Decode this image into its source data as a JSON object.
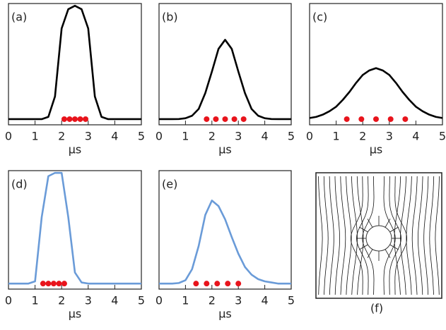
{
  "chart_data": [
    {
      "type": "line",
      "label": "(a)",
      "x_label": "μs",
      "xlim": [
        0,
        5
      ],
      "ylim": [
        -0.05,
        1.02
      ],
      "xticks": [
        0,
        1,
        2,
        3,
        4,
        5
      ],
      "x": [
        0,
        0.25,
        0.5,
        0.75,
        1,
        1.25,
        1.5,
        1.75,
        2,
        2.25,
        2.5,
        2.75,
        3,
        3.25,
        3.5,
        3.75,
        4,
        4.25,
        4.5,
        4.75,
        5
      ],
      "series": [
        {
          "color": "#000000",
          "values": [
            0,
            0,
            0,
            0,
            0,
            0,
            0.02,
            0.2,
            0.8,
            0.97,
            1.0,
            0.97,
            0.8,
            0.2,
            0.02,
            0,
            0,
            0,
            0,
            0,
            0
          ]
        }
      ],
      "markers": {
        "color": "#e8141c",
        "x": [
          2.1,
          2.3,
          2.5,
          2.7,
          2.9
        ],
        "y": [
          0,
          0,
          0,
          0,
          0
        ]
      }
    },
    {
      "type": "line",
      "label": "(b)",
      "x_label": "μs",
      "xlim": [
        0,
        5
      ],
      "ylim": [
        -0.05,
        1.02
      ],
      "xticks": [
        0,
        1,
        2,
        3,
        4,
        5
      ],
      "x": [
        0,
        0.25,
        0.5,
        0.75,
        1,
        1.25,
        1.5,
        1.75,
        2,
        2.25,
        2.5,
        2.75,
        3,
        3.25,
        3.5,
        3.75,
        4,
        4.25,
        4.5,
        4.75,
        5
      ],
      "series": [
        {
          "color": "#000000",
          "values": [
            0,
            0,
            0,
            0.001,
            0.008,
            0.03,
            0.09,
            0.23,
            0.42,
            0.62,
            0.7,
            0.62,
            0.42,
            0.23,
            0.09,
            0.03,
            0.008,
            0.001,
            0,
            0,
            0
          ]
        }
      ],
      "markers": {
        "color": "#e8141c",
        "x": [
          1.8,
          2.15,
          2.5,
          2.85,
          3.2
        ],
        "y": [
          0,
          0,
          0,
          0,
          0
        ]
      }
    },
    {
      "type": "line",
      "label": "(c)",
      "x_label": "μs",
      "xlim": [
        0,
        5
      ],
      "ylim": [
        -0.05,
        1.02
      ],
      "xticks": [
        0,
        1,
        2,
        3,
        4,
        5
      ],
      "x": [
        0,
        0.25,
        0.5,
        0.75,
        1,
        1.25,
        1.5,
        1.75,
        2,
        2.25,
        2.5,
        2.75,
        3,
        3.25,
        3.5,
        3.75,
        4,
        4.25,
        4.5,
        4.75,
        5
      ],
      "series": [
        {
          "color": "#000000",
          "values": [
            0.01,
            0.02,
            0.04,
            0.07,
            0.11,
            0.17,
            0.24,
            0.32,
            0.39,
            0.43,
            0.45,
            0.43,
            0.39,
            0.32,
            0.24,
            0.17,
            0.11,
            0.07,
            0.04,
            0.02,
            0.01
          ]
        }
      ],
      "markers": {
        "color": "#e8141c",
        "x": [
          1.4,
          1.95,
          2.5,
          3.05,
          3.6
        ],
        "y": [
          0,
          0,
          0,
          0,
          0
        ]
      }
    },
    {
      "type": "line",
      "label": "(d)",
      "x_label": "μs",
      "xlim": [
        0,
        5
      ],
      "ylim": [
        -0.05,
        1.02
      ],
      "xticks": [
        0,
        1,
        2,
        3,
        4,
        5
      ],
      "x": [
        0,
        0.25,
        0.5,
        0.75,
        1,
        1.25,
        1.5,
        1.75,
        2,
        2.25,
        2.5,
        2.75,
        3,
        3.25,
        3.5,
        3.75,
        4,
        4.25,
        4.5,
        4.75,
        5
      ],
      "series": [
        {
          "color": "#6a9bd8",
          "values": [
            0,
            0,
            0,
            0,
            0.02,
            0.6,
            0.97,
            1.0,
            1.0,
            0.6,
            0.1,
            0.01,
            0,
            0,
            0,
            0,
            0,
            0,
            0,
            0,
            0
          ]
        }
      ],
      "markers": {
        "color": "#e8141c",
        "x": [
          1.3,
          1.5,
          1.7,
          1.9,
          2.1
        ],
        "y": [
          0,
          0,
          0,
          0,
          0
        ]
      }
    },
    {
      "type": "line",
      "label": "(e)",
      "x_label": "μs",
      "xlim": [
        0,
        5
      ],
      "ylim": [
        -0.05,
        1.02
      ],
      "xticks": [
        0,
        1,
        2,
        3,
        4,
        5
      ],
      "x": [
        0,
        0.25,
        0.5,
        0.75,
        1,
        1.25,
        1.5,
        1.75,
        2,
        2.25,
        2.5,
        2.75,
        3,
        3.25,
        3.5,
        3.75,
        4,
        4.25,
        4.5,
        4.75,
        5
      ],
      "series": [
        {
          "color": "#6a9bd8",
          "values": [
            0,
            0,
            0,
            0.005,
            0.03,
            0.13,
            0.34,
            0.62,
            0.75,
            0.7,
            0.58,
            0.42,
            0.27,
            0.15,
            0.08,
            0.04,
            0.02,
            0.01,
            0,
            0,
            0
          ]
        }
      ],
      "markers": {
        "color": "#e8141c",
        "x": [
          1.4,
          1.8,
          2.2,
          2.6,
          3.0
        ],
        "y": [
          0,
          0,
          0,
          0,
          0
        ]
      }
    }
  ],
  "panel_f": {
    "label": "(f)"
  }
}
